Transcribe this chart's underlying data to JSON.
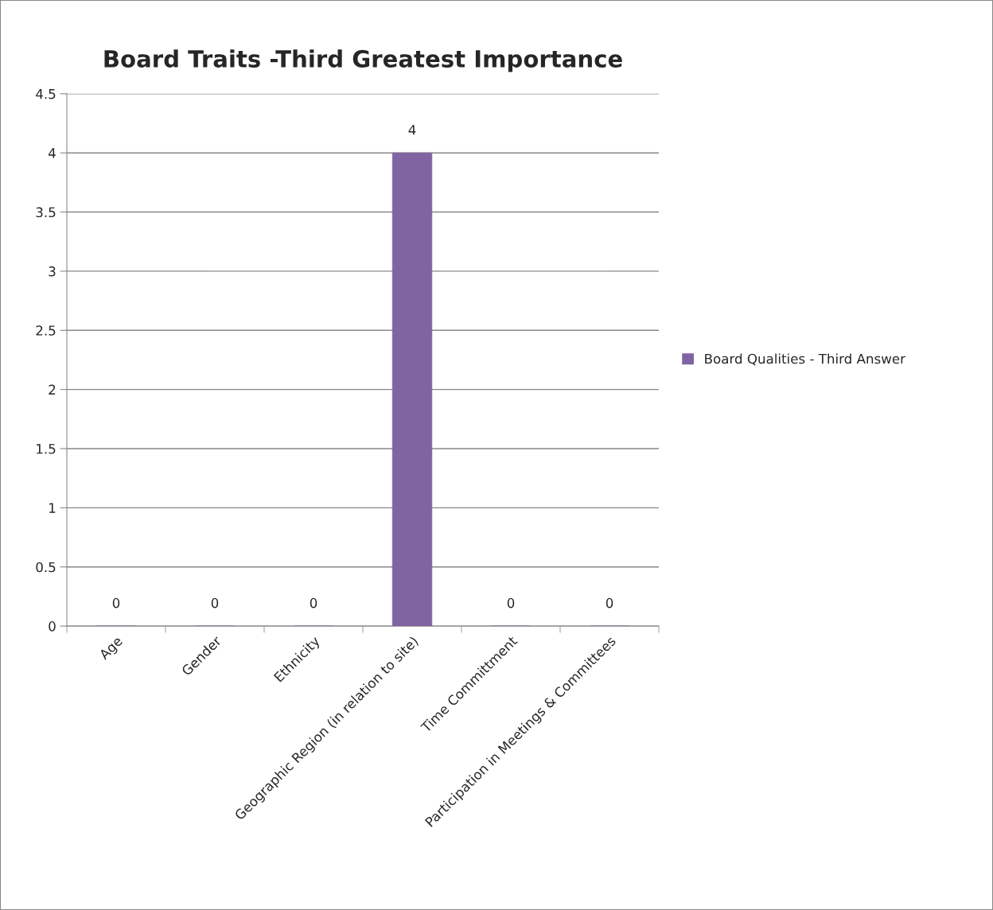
{
  "chart_data": {
    "type": "bar",
    "title": "Board Traits -Third Greatest Importance",
    "categories": [
      "Age",
      "Gender",
      "Ethnicity",
      "Geographic Region (in relation to site)",
      "Time Committment",
      "Participation in Meetings & Committees"
    ],
    "series": [
      {
        "name": "Board Qualities - Third Answer",
        "color": "#8064a2",
        "values": [
          0,
          0,
          0,
          4,
          0,
          0
        ]
      }
    ],
    "ylim": [
      0,
      4.5
    ],
    "yticks": [
      0,
      0.5,
      1,
      1.5,
      2,
      2.5,
      3,
      3.5,
      4,
      4.5
    ],
    "grid": "y",
    "legend": "right",
    "data_labels": true
  }
}
